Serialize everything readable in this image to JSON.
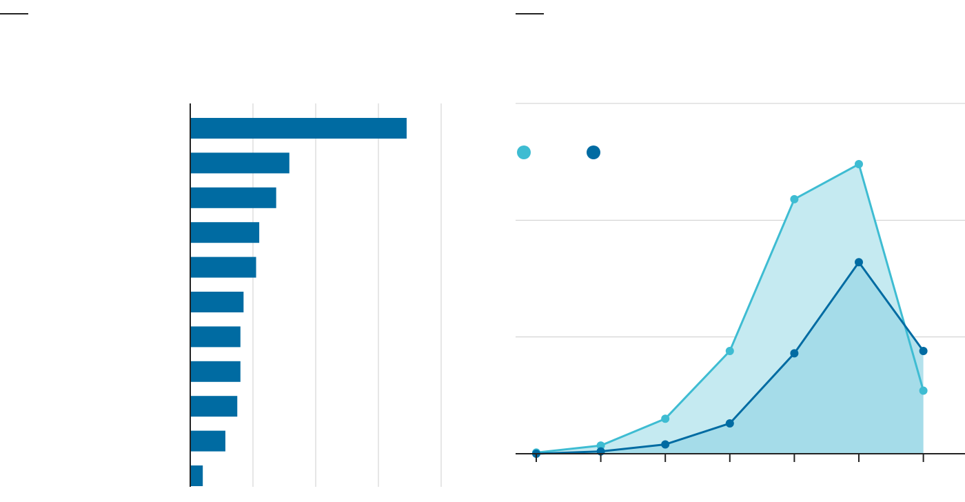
{
  "chart_data": [
    {
      "type": "bar",
      "orientation": "horizontal",
      "categories": [
        "",
        "",
        "",
        "",
        "",
        "",
        "",
        "",
        "",
        "",
        ""
      ],
      "values": [
        34.5,
        15.8,
        13.7,
        11.0,
        10.5,
        8.5,
        8.0,
        8.0,
        7.5,
        5.6,
        2.0
      ],
      "xlim": [
        0,
        40
      ],
      "grid": true,
      "color": "#006ba2"
    },
    {
      "type": "area",
      "x": [
        1,
        2,
        3,
        4,
        5,
        6,
        7
      ],
      "series": [
        {
          "name": "",
          "values": [
            0.05,
            0.35,
            1.5,
            4.4,
            10.9,
            12.4,
            2.7
          ],
          "color": "#3ebcd2",
          "fill": "#c5eaf1"
        },
        {
          "name": "",
          "values": [
            0.0,
            0.1,
            0.4,
            1.3,
            4.3,
            8.2,
            4.4
          ],
          "color": "#006ba2",
          "fill": "#9ad7e5"
        }
      ],
      "ylim": [
        0,
        15
      ],
      "grid": true,
      "legend": "top-left"
    }
  ]
}
